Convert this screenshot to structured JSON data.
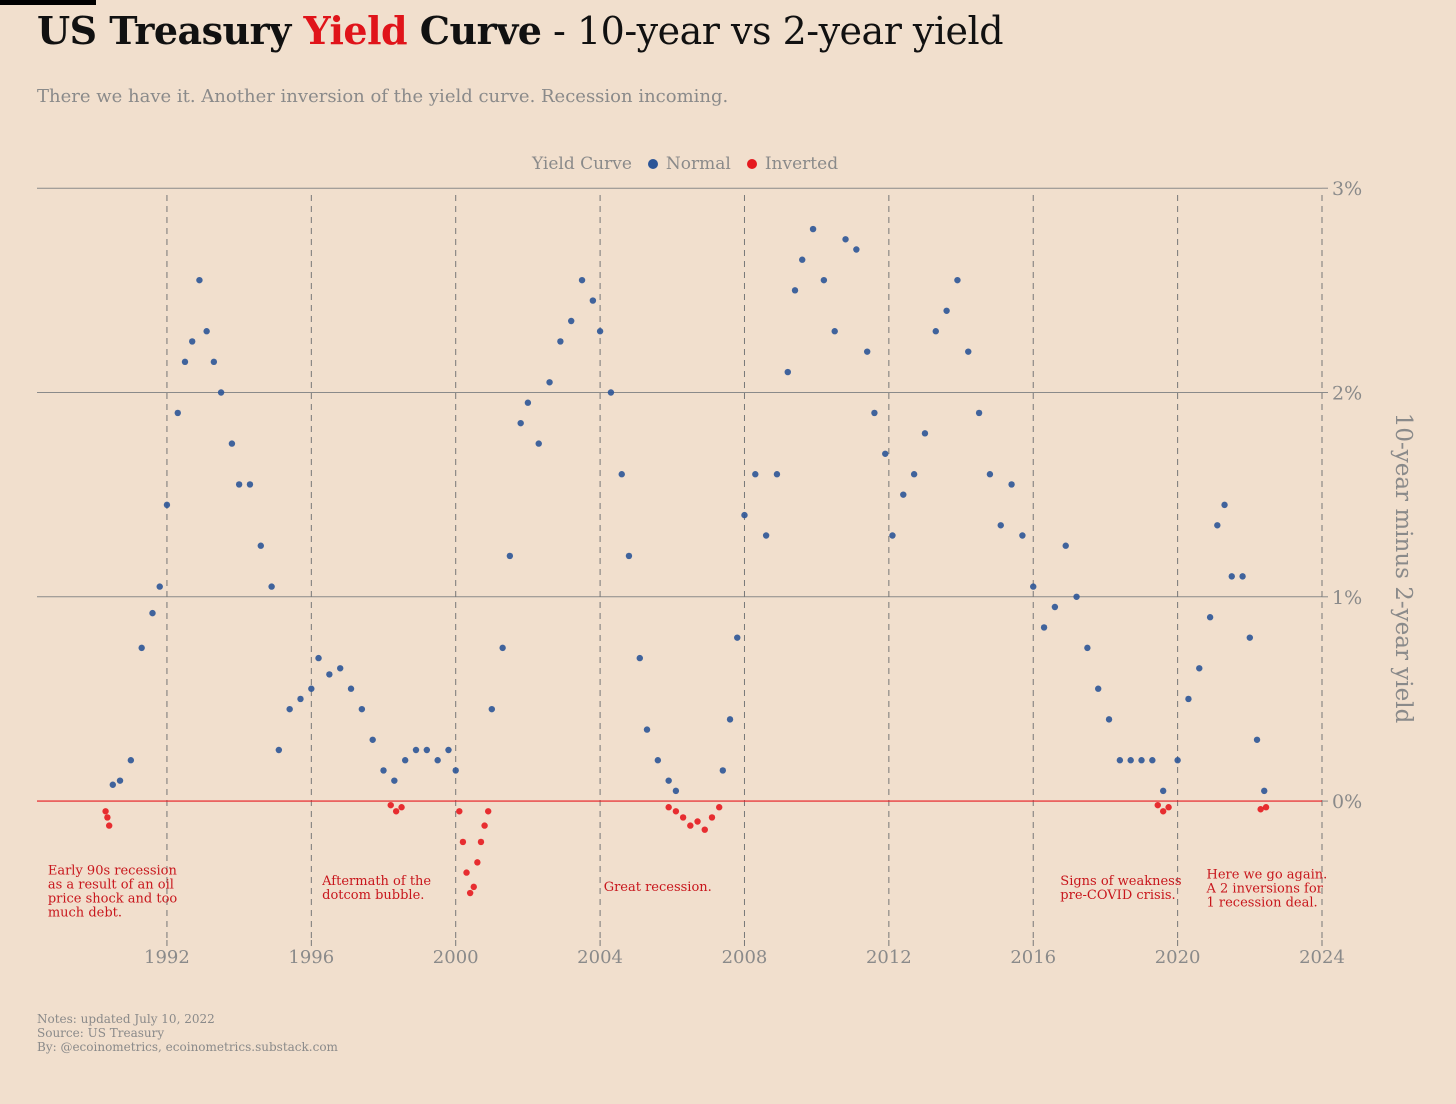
{
  "header": {
    "title_part1": "US Treasury ",
    "title_accent": "Yield",
    "title_part2": " Curve",
    "title_rest": " - 10-year vs 2-year yield",
    "subtitle": "There we have it. Another inversion of the yield curve. Recession incoming."
  },
  "legend": {
    "title": "Yield Curve",
    "normal": "Normal",
    "inverted": "Inverted"
  },
  "colors": {
    "background": "#f1dfcd",
    "normal": "#2c5597",
    "inverted": "#e5191f",
    "annotation": "#c8161c",
    "grid": "#8a8a8a",
    "text_muted": "#8a8a8a"
  },
  "chart_data": {
    "type": "scatter",
    "title": "US Treasury Yield Curve - 10-year vs 2-year yield",
    "subtitle": "There we have it. Another inversion of the yield curve. Recession incoming.",
    "xlabel": "",
    "ylabel": "10-year minus 2-year yield",
    "xlim": [
      1988.4,
      2024
    ],
    "ylim": [
      -0.68,
      3.05
    ],
    "x_ticks": [
      1992,
      1996,
      2000,
      2004,
      2008,
      2012,
      2016,
      2020,
      2024
    ],
    "x_tick_labels": [
      "1992",
      "1996",
      "2000",
      "2004",
      "2008",
      "2012",
      "2016",
      "2020",
      "2024"
    ],
    "y_ticks": [
      0,
      1,
      2,
      3
    ],
    "y_tick_labels": [
      "0%",
      "1%",
      "2%",
      "3%"
    ],
    "grid": "horizontal solid at y ticks, vertical dashed at x ticks",
    "legend_position": "top",
    "series": [
      {
        "name": "Normal",
        "color": "#2c5597",
        "description": "10y-2y spread above zero",
        "x": [
          1990.5,
          1990.7,
          1991.0,
          1991.3,
          1991.6,
          1991.8,
          1992.0,
          1992.3,
          1992.5,
          1992.7,
          1992.9,
          1993.1,
          1993.3,
          1993.5,
          1993.8,
          1994.0,
          1994.3,
          1994.6,
          1994.9,
          1995.1,
          1995.4,
          1995.7,
          1996.0,
          1996.2,
          1996.5,
          1996.8,
          1997.1,
          1997.4,
          1997.7,
          1998.0,
          1998.3,
          1998.6,
          1998.9,
          1999.2,
          1999.5,
          1999.8,
          2000.0,
          2001.0,
          2001.3,
          2001.5,
          2001.8,
          2002.0,
          2002.3,
          2002.6,
          2002.9,
          2003.2,
          2003.5,
          2003.8,
          2004.0,
          2004.3,
          2004.6,
          2004.8,
          2005.1,
          2005.3,
          2005.6,
          2005.9,
          2006.1,
          2007.4,
          2007.6,
          2007.8,
          2008.0,
          2008.3,
          2008.6,
          2008.9,
          2009.2,
          2009.4,
          2009.6,
          2009.9,
          2010.2,
          2010.5,
          2010.8,
          2011.1,
          2011.4,
          2011.6,
          2011.9,
          2012.1,
          2012.4,
          2012.7,
          2013.0,
          2013.3,
          2013.6,
          2013.9,
          2014.2,
          2014.5,
          2014.8,
          2015.1,
          2015.4,
          2015.7,
          2016.0,
          2016.3,
          2016.6,
          2016.9,
          2017.2,
          2017.5,
          2017.8,
          2018.1,
          2018.4,
          2018.7,
          2019.0,
          2019.3,
          2019.6,
          2020.0,
          2020.3,
          2020.6,
          2020.9,
          2021.1,
          2021.3,
          2021.5,
          2021.8,
          2022.0,
          2022.2,
          2022.4
        ],
        "y": [
          0.08,
          0.1,
          0.2,
          0.75,
          0.92,
          1.05,
          1.45,
          1.9,
          2.15,
          2.25,
          2.55,
          2.3,
          2.15,
          2.0,
          1.75,
          1.55,
          1.55,
          1.25,
          1.05,
          0.25,
          0.45,
          0.5,
          0.55,
          0.7,
          0.62,
          0.65,
          0.55,
          0.45,
          0.3,
          0.15,
          0.1,
          0.2,
          0.25,
          0.25,
          0.2,
          0.25,
          0.15,
          0.45,
          0.75,
          1.2,
          1.85,
          1.95,
          1.75,
          2.05,
          2.25,
          2.35,
          2.55,
          2.45,
          2.3,
          2.0,
          1.6,
          1.2,
          0.7,
          0.35,
          0.2,
          0.1,
          0.05,
          0.15,
          0.4,
          0.8,
          1.4,
          1.6,
          1.3,
          1.6,
          2.1,
          2.5,
          2.65,
          2.8,
          2.55,
          2.3,
          2.75,
          2.7,
          2.2,
          1.9,
          1.7,
          1.3,
          1.5,
          1.6,
          1.8,
          2.3,
          2.4,
          2.55,
          2.2,
          1.9,
          1.6,
          1.35,
          1.55,
          1.3,
          1.05,
          0.85,
          0.95,
          1.25,
          1.0,
          0.75,
          0.55,
          0.4,
          0.2,
          0.2,
          0.2,
          0.2,
          0.05,
          0.2,
          0.5,
          0.65,
          0.9,
          1.35,
          1.45,
          1.1,
          1.1,
          0.8,
          0.3,
          0.05
        ]
      },
      {
        "name": "Inverted",
        "color": "#e5191f",
        "description": "10y-2y spread below zero",
        "x": [
          1990.3,
          1990.35,
          1990.4,
          1998.2,
          1998.35,
          1998.5,
          2000.1,
          2000.2,
          2000.3,
          2000.4,
          2000.5,
          2000.6,
          2000.7,
          2000.8,
          2000.9,
          2005.9,
          2006.1,
          2006.3,
          2006.5,
          2006.7,
          2006.9,
          2007.1,
          2007.3,
          2019.45,
          2019.6,
          2019.75,
          2022.3,
          2022.45
        ],
        "y": [
          -0.05,
          -0.08,
          -0.12,
          -0.02,
          -0.05,
          -0.03,
          -0.05,
          -0.2,
          -0.35,
          -0.45,
          -0.42,
          -0.3,
          -0.2,
          -0.12,
          -0.05,
          -0.03,
          -0.05,
          -0.08,
          -0.12,
          -0.1,
          -0.14,
          -0.08,
          -0.03,
          -0.02,
          -0.05,
          -0.03,
          -0.04,
          -0.03
        ]
      }
    ],
    "reference_line": {
      "y": 0,
      "color": "#e5191f"
    },
    "annotations": [
      {
        "x": 1988.7,
        "y": -0.36,
        "text": [
          "Early 90s recession",
          "as a result of an oil",
          "price shock and too",
          "much debt."
        ]
      },
      {
        "x": 1996.3,
        "y": -0.41,
        "text": [
          "Aftermath of the",
          "dotcom bubble."
        ]
      },
      {
        "x": 2004.1,
        "y": -0.44,
        "text": [
          "Great recession."
        ]
      },
      {
        "x": 2016.75,
        "y": -0.41,
        "text": [
          "Signs of weakness",
          "pre-COVID crisis."
        ]
      },
      {
        "x": 2020.8,
        "y": -0.38,
        "text": [
          "Here we go again.",
          "A 2 inversions for",
          "1 recession deal."
        ]
      }
    ]
  },
  "notes": {
    "line1": "Notes: updated July 10, 2022",
    "line2": "Source: US Treasury",
    "line3": "By: @ecoinometrics, ecoinometrics.substack.com"
  }
}
